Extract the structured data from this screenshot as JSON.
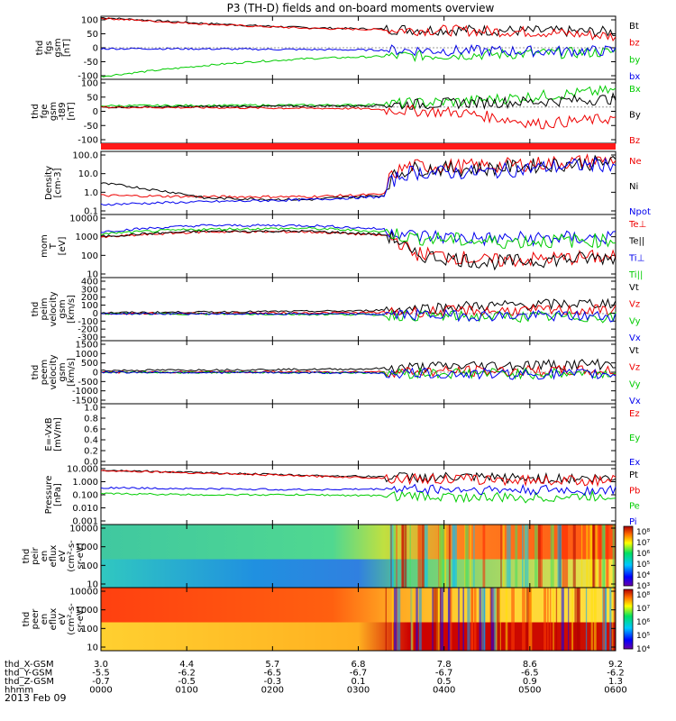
{
  "title": "P3 (TH-D) fields and on-board moments overview",
  "date_label": "2013 Feb 09",
  "colors": {
    "black": "#000000",
    "red": "#ee0000",
    "green": "#00cc00",
    "blue": "#0000ee",
    "bar_red": "#ff1a1a"
  },
  "chart_data": [
    {
      "type": "line",
      "panel": "fgs",
      "ylabel": [
        "thd",
        "fgs",
        "gsm",
        "[nT]"
      ],
      "yticks": [
        "100",
        "50",
        "0",
        "-50",
        "-100"
      ],
      "ylim": [
        -110,
        110
      ],
      "series": [
        {
          "name": "Bt",
          "color": "#000000",
          "x": [
            0,
            0.1,
            0.2,
            0.3,
            0.4,
            0.55,
            0.7,
            0.85,
            1.0
          ],
          "values": [
            105,
            95,
            85,
            77,
            70,
            65,
            62,
            58,
            55
          ]
        },
        {
          "name": "bz",
          "color": "#ee0000",
          "x": [
            0,
            0.1,
            0.2,
            0.3,
            0.4,
            0.55,
            0.7,
            0.85,
            1.0
          ],
          "values": [
            103,
            93,
            83,
            75,
            68,
            63,
            60,
            55,
            40
          ]
        },
        {
          "name": "by",
          "color": "#00cc00",
          "x": [
            0,
            0.1,
            0.2,
            0.3,
            0.4,
            0.55,
            0.7,
            0.85,
            1.0
          ],
          "values": [
            -100,
            -80,
            -62,
            -48,
            -38,
            -30,
            -25,
            -20,
            -15
          ]
        },
        {
          "name": "bx",
          "color": "#0000ee",
          "x": [
            0,
            0.1,
            0.2,
            0.3,
            0.4,
            0.55,
            0.7,
            0.85,
            1.0
          ],
          "values": [
            -3,
            -3,
            -4,
            -5,
            -6,
            -8,
            -10,
            -12,
            -10
          ]
        }
      ]
    },
    {
      "type": "line",
      "panel": "fge",
      "ylabel": [
        "thd",
        "fge",
        "gsm",
        "-t89",
        "[nT]"
      ],
      "yticks": [
        "100",
        "50",
        "0",
        "-50",
        "-100"
      ],
      "ylim": [
        -130,
        100
      ],
      "series": [
        {
          "name": "Bx",
          "color": "#00cc00",
          "x": [
            0,
            0.5,
            0.7,
            0.85,
            1.0
          ],
          "values": [
            5,
            8,
            20,
            40,
            60
          ]
        },
        {
          "name": "By",
          "color": "#000000",
          "x": [
            0,
            0.5,
            0.7,
            0.85,
            1.0
          ],
          "values": [
            0,
            5,
            15,
            20,
            30
          ]
        },
        {
          "name": "Bz",
          "color": "#ee0000",
          "x": [
            0,
            0.5,
            0.7,
            0.85,
            1.0
          ],
          "values": [
            0,
            -5,
            -20,
            -60,
            -40
          ]
        }
      ]
    },
    {
      "type": "line",
      "panel": "density",
      "scale": "log",
      "ylabel": [
        "Density",
        "[cm-3]"
      ],
      "yticks": [
        "100.0",
        "10.0",
        "1.0",
        "0.1"
      ],
      "ylim": [
        0.1,
        100
      ],
      "series": [
        {
          "name": "Ne",
          "color": "#ee0000",
          "x": [
            0,
            0.2,
            0.4,
            0.55,
            0.6,
            0.75,
            0.9,
            1.0
          ],
          "values": [
            0.8,
            0.7,
            0.7,
            0.9,
            20,
            20,
            30,
            40
          ]
        },
        {
          "name": "Ni",
          "color": "#000000",
          "x": [
            0,
            0.1,
            0.2,
            0.4,
            0.55,
            0.6,
            0.75,
            0.9,
            1.0
          ],
          "values": [
            3,
            1.5,
            0.6,
            0.5,
            0.8,
            15,
            15,
            25,
            30
          ]
        },
        {
          "name": "Npot",
          "color": "#0000ee",
          "x": [
            0,
            0.2,
            0.4,
            0.55,
            0.6,
            0.75,
            0.9,
            1.0
          ],
          "values": [
            0.3,
            0.4,
            0.5,
            0.7,
            10,
            10,
            20,
            25
          ]
        }
      ]
    },
    {
      "type": "line",
      "panel": "temperature",
      "scale": "log",
      "ylabel": [
        "mom",
        "T",
        "[eV]"
      ],
      "yticks": [
        "10000",
        "1000",
        "100",
        "10"
      ],
      "ylim": [
        10,
        10000
      ],
      "series": [
        {
          "name": "Te⊥",
          "color": "#ee0000",
          "x": [
            0,
            0.2,
            0.4,
            0.55,
            0.6,
            0.75,
            1.0
          ],
          "values": [
            800,
            1500,
            1500,
            1000,
            150,
            60,
            100
          ]
        },
        {
          "name": "Te||",
          "color": "#000000",
          "x": [
            0,
            0.2,
            0.4,
            0.55,
            0.6,
            0.75,
            1.0
          ],
          "values": [
            900,
            1600,
            1600,
            1100,
            120,
            50,
            90
          ]
        },
        {
          "name": "Ti⊥",
          "color": "#0000ee",
          "x": [
            0,
            0.2,
            0.4,
            0.55,
            0.6,
            0.75,
            1.0
          ],
          "values": [
            1500,
            3000,
            3000,
            2000,
            1000,
            700,
            800
          ]
        },
        {
          "name": "Ti||",
          "color": "#00cc00",
          "x": [
            0,
            0.2,
            0.4,
            0.55,
            0.6,
            0.75,
            1.0
          ],
          "values": [
            1200,
            2000,
            2200,
            1500,
            800,
            500,
            600
          ]
        }
      ]
    },
    {
      "type": "line",
      "panel": "peim_velocity",
      "ylabel": [
        "thd",
        "peim",
        "velocity",
        "gsm",
        "[km/s]"
      ],
      "yticks": [
        "400",
        "300",
        "200",
        "100",
        "0",
        "-100",
        "-200",
        "-300"
      ],
      "ylim": [
        -300,
        400
      ],
      "series": [
        {
          "name": "Vt",
          "color": "#000000",
          "x": [
            0,
            0.5,
            0.7,
            1.0
          ],
          "values": [
            10,
            30,
            80,
            120
          ]
        },
        {
          "name": "Vz",
          "color": "#ee0000",
          "x": [
            0,
            0.5,
            0.7,
            1.0
          ],
          "values": [
            0,
            10,
            30,
            40
          ]
        },
        {
          "name": "Vy",
          "color": "#00cc00",
          "x": [
            0,
            0.5,
            0.7,
            1.0
          ],
          "values": [
            0,
            -10,
            -30,
            -40
          ]
        },
        {
          "name": "Vx",
          "color": "#0000ee",
          "x": [
            0,
            0.5,
            0.7,
            1.0
          ],
          "values": [
            0,
            -5,
            -20,
            -30
          ]
        }
      ]
    },
    {
      "type": "line",
      "panel": "peem_velocity",
      "ylabel": [
        "thd",
        "peem",
        "velocity",
        "gsm",
        "[km/s]"
      ],
      "yticks": [
        "1500",
        "1000",
        "500",
        "0",
        "-500",
        "-1000",
        "-1500"
      ],
      "ylim": [
        -1500,
        1500
      ],
      "series": [
        {
          "name": "Vt",
          "color": "#000000",
          "x": [
            0,
            0.5,
            0.7,
            1.0
          ],
          "values": [
            80,
            150,
            300,
            400
          ]
        },
        {
          "name": "Vz",
          "color": "#ee0000",
          "x": [
            0,
            0.5,
            0.7,
            1.0
          ],
          "values": [
            0,
            20,
            50,
            60
          ]
        },
        {
          "name": "Vy",
          "color": "#00cc00",
          "x": [
            0,
            0.5,
            0.7,
            1.0
          ],
          "values": [
            0,
            -20,
            -50,
            -60
          ]
        },
        {
          "name": "Vx",
          "color": "#0000ee",
          "x": [
            0,
            0.5,
            0.7,
            1.0
          ],
          "values": [
            0,
            -30,
            -80,
            -100
          ]
        }
      ]
    },
    {
      "type": "line",
      "panel": "efield",
      "ylabel": [
        "E=-VxB",
        "[mV/m]"
      ],
      "yticks": [
        "1.0",
        "0.8",
        "0.6",
        "0.4",
        "0.2",
        "0.0"
      ],
      "ylim": [
        0,
        1
      ],
      "series": [
        {
          "name": "Ez",
          "color": "#ee0000",
          "x": [],
          "values": []
        },
        {
          "name": "Ey",
          "color": "#00cc00",
          "x": [],
          "values": []
        },
        {
          "name": "Ex",
          "color": "#0000ee",
          "x": [],
          "values": []
        }
      ]
    },
    {
      "type": "line",
      "panel": "pressure",
      "scale": "log",
      "ylabel": [
        "Pressure",
        "[nPa]"
      ],
      "yticks": [
        "10.000",
        "1.000",
        "0.100",
        "0.010",
        "0.001"
      ],
      "ylim": [
        0.001,
        10
      ],
      "series": [
        {
          "name": "Pt",
          "color": "#000000",
          "x": [
            0,
            0.2,
            0.4,
            0.6,
            0.8,
            1.0
          ],
          "values": [
            4.5,
            3.0,
            2.0,
            1.5,
            1.3,
            1.2
          ]
        },
        {
          "name": "Pb",
          "color": "#ee0000",
          "x": [
            0,
            0.2,
            0.4,
            0.6,
            0.8,
            1.0
          ],
          "values": [
            4.3,
            2.8,
            1.8,
            1.2,
            1.0,
            0.9
          ]
        },
        {
          "name": "Pe",
          "color": "#00cc00",
          "x": [
            0,
            0.2,
            0.4,
            0.6,
            0.8,
            1.0
          ],
          "values": [
            0.12,
            0.1,
            0.1,
            0.08,
            0.06,
            0.08
          ]
        },
        {
          "name": "Pi",
          "color": "#0000ee",
          "x": [
            0,
            0.2,
            0.4,
            0.6,
            0.8,
            1.0
          ],
          "values": [
            0.3,
            0.25,
            0.22,
            0.25,
            0.2,
            0.2
          ]
        }
      ]
    },
    {
      "type": "heatmap",
      "panel": "peir",
      "ylabel": [
        "thd",
        "peir",
        "en",
        "eflux",
        "eV",
        "(cm²-s-",
        "sr-eV)"
      ],
      "yticks": [
        "10000",
        "1000",
        "100",
        "10"
      ],
      "colorbar_ticks": [
        "10⁸",
        "10⁷",
        "10⁶",
        "10⁵",
        "10⁴",
        "10³"
      ]
    },
    {
      "type": "heatmap",
      "panel": "peer",
      "ylabel": [
        "thd",
        "peer",
        "en",
        "eflux",
        "eV",
        "(cm²-s-",
        "sr-eV)"
      ],
      "yticks": [
        "10000",
        "1000",
        "100",
        "10"
      ],
      "colorbar_ticks": [
        "10⁸",
        "10⁷",
        "10⁶",
        "10⁵",
        "10⁴"
      ]
    }
  ],
  "x_axis": {
    "ticks": [
      "0000",
      "0100",
      "0200",
      "0300",
      "0400",
      "0500",
      "0600"
    ],
    "rows": [
      {
        "label": "thd_X-GSM",
        "values": [
          "3.0",
          "4.4",
          "5.7",
          "6.8",
          "7.8",
          "8.6",
          "9.2"
        ]
      },
      {
        "label": "thd_Y-GSM",
        "values": [
          "-5.5",
          "-6.2",
          "-6.5",
          "-6.7",
          "-6.7",
          "-6.5",
          "-6.2"
        ]
      },
      {
        "label": "thd_Z-GSM",
        "values": [
          "-0.7",
          "-0.5",
          "-0.3",
          "0.1",
          "0.5",
          "0.9",
          "1.3"
        ]
      },
      {
        "label": "hhmm",
        "values": [
          "0000",
          "0100",
          "0200",
          "0300",
          "0400",
          "0500",
          "0600"
        ]
      }
    ]
  }
}
